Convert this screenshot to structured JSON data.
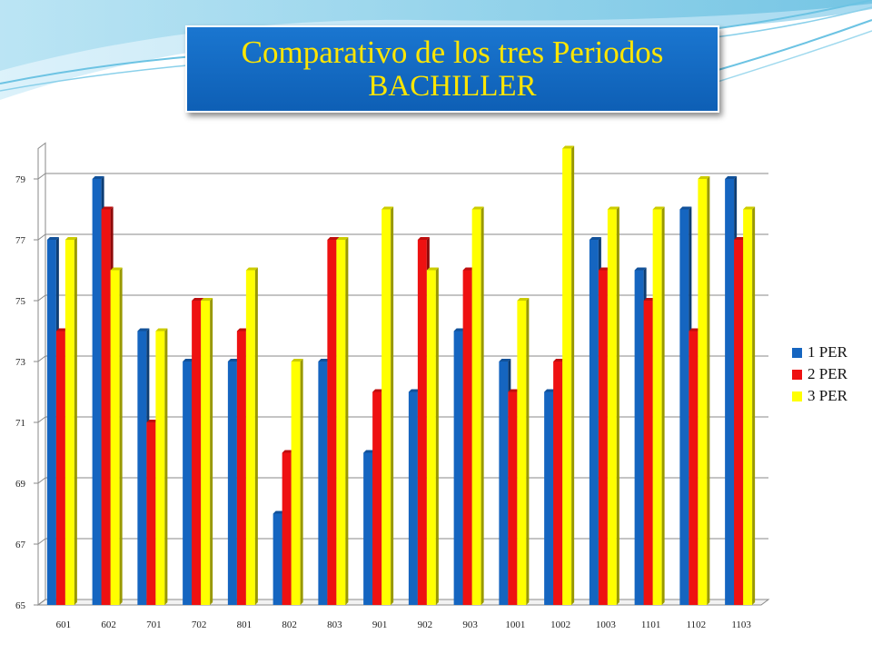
{
  "title": {
    "line1": "Comparativo de los tres Periodos",
    "line2": "BACHILLER"
  },
  "colors": {
    "title_bg": "#1470c8",
    "title_text": "#ffe600",
    "series_1": "#1565c0",
    "series_2": "#ee1111",
    "series_3": "#ffff00"
  },
  "chart_data": {
    "type": "bar",
    "categories": [
      "601",
      "602",
      "701",
      "702",
      "801",
      "802",
      "803",
      "901",
      "902",
      "903",
      "1001",
      "1002",
      "1003",
      "1101",
      "1102",
      "1103"
    ],
    "series": [
      {
        "name": "1 PER",
        "values": [
          77,
          79,
          74,
          73,
          73,
          68,
          73,
          70,
          72,
          74,
          73,
          72,
          77,
          76,
          78,
          79
        ]
      },
      {
        "name": "2 PER",
        "values": [
          74,
          78,
          71,
          75,
          74,
          70,
          77,
          72,
          77,
          76,
          72,
          73,
          76,
          75,
          74,
          77
        ]
      },
      {
        "name": "3 PER",
        "values": [
          77,
          76,
          74,
          75,
          76,
          73,
          77,
          78,
          76,
          78,
          75,
          80,
          78,
          78,
          79,
          78
        ]
      }
    ],
    "yticks": [
      65,
      67,
      69,
      71,
      73,
      75,
      77,
      79
    ],
    "ylim": [
      65,
      80
    ],
    "grid": true,
    "legend_position": "right",
    "style": "3d-bars"
  }
}
